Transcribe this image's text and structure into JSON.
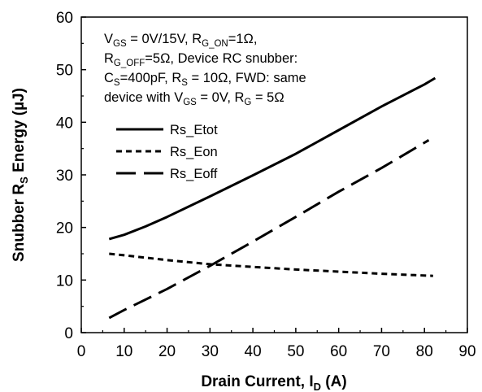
{
  "chart_data": {
    "type": "line",
    "xlabel": "Drain Current, I_D (A)",
    "ylabel": "Snubber R_S Energy (µJ)",
    "xlim": [
      0,
      90
    ],
    "ylim": [
      0,
      60
    ],
    "xticks": [
      0,
      10,
      20,
      30,
      40,
      50,
      60,
      70,
      80,
      90
    ],
    "yticks": [
      0,
      10,
      20,
      30,
      40,
      50,
      60
    ],
    "grid": false,
    "legend_position": "upper-left",
    "annotation": [
      "V_GS = 0V/15V, R_G_ON=1Ω,",
      "R_G_OFF=5Ω, Device RC snubber:",
      "C_S=400pF,  R_S = 10Ω, FWD: same",
      "device with V_GS = 0V, R_G = 5Ω"
    ],
    "series": [
      {
        "name": "Rs_Etot",
        "style": "solid",
        "x": [
          6.5,
          10,
          15,
          20,
          30,
          40,
          50,
          60,
          70,
          80,
          82.5
        ],
        "values": [
          17.8,
          18.6,
          20.2,
          22.0,
          25.9,
          29.9,
          34.0,
          38.5,
          43.0,
          47.2,
          48.4
        ]
      },
      {
        "name": "Rs_Eon",
        "style": "short-dash",
        "x": [
          6.5,
          10,
          20,
          30,
          40,
          50,
          60,
          70,
          82
        ],
        "values": [
          15.0,
          14.7,
          13.8,
          13.0,
          12.5,
          12.0,
          11.6,
          11.2,
          10.8
        ]
      },
      {
        "name": "Rs_Eoff",
        "style": "long-dash",
        "x": [
          6.5,
          10,
          20,
          30,
          40,
          50,
          60,
          70,
          81
        ],
        "values": [
          2.8,
          4.3,
          8.3,
          12.7,
          17.3,
          22.0,
          26.8,
          31.3,
          36.6
        ]
      }
    ]
  }
}
